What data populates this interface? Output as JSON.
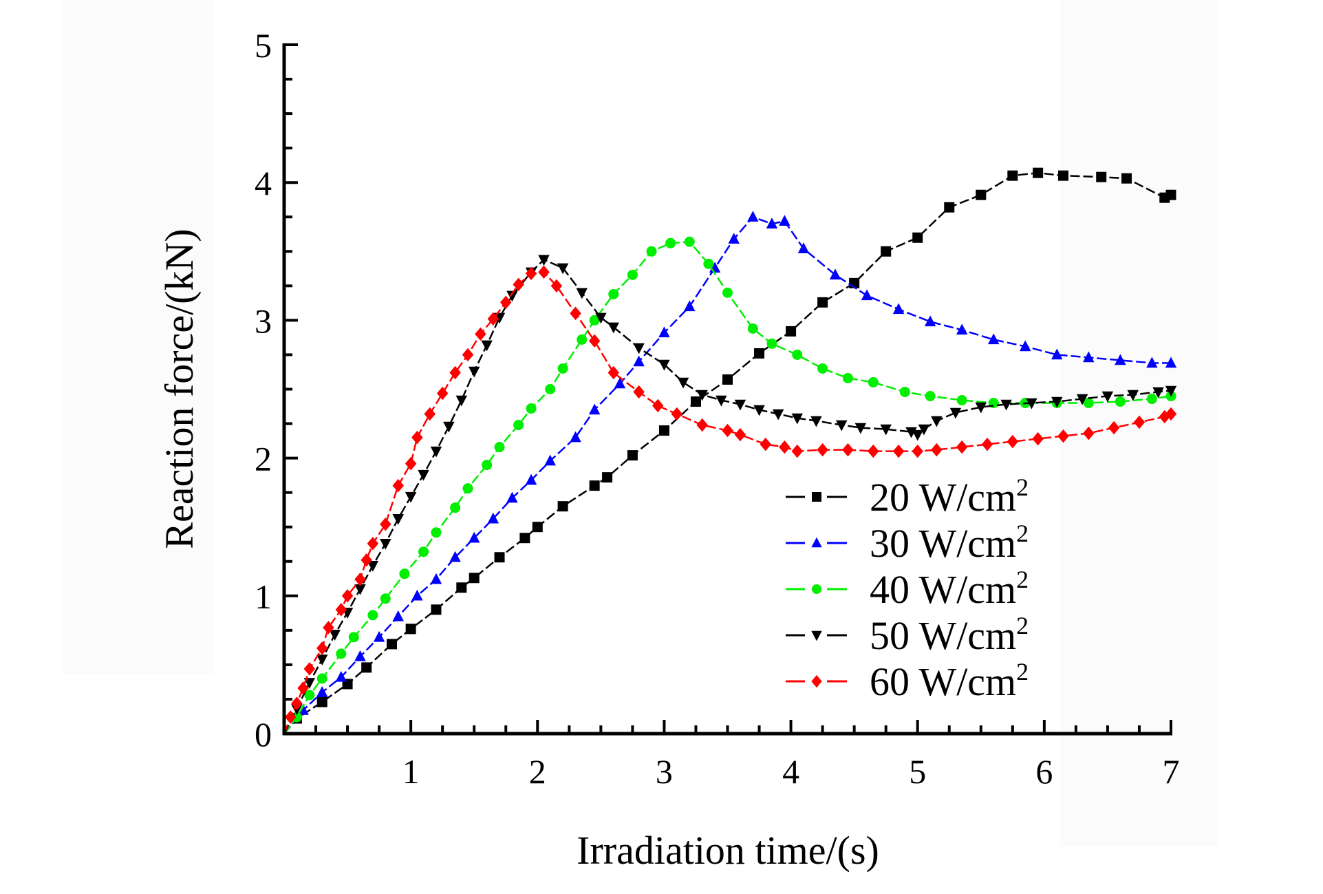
{
  "chart_data": {
    "type": "line",
    "title": "",
    "xlabel": "Irradiation time/(s)",
    "ylabel": "Reaction force/(kN)",
    "xlim": [
      0,
      7
    ],
    "ylim": [
      0,
      5
    ],
    "xticks": [
      1,
      2,
      3,
      4,
      5,
      6,
      7
    ],
    "yticks": [
      0,
      1,
      2,
      3,
      4,
      5
    ],
    "x_minor_step": 0.25,
    "y_minor_step": 0.25,
    "grid": false,
    "legend_position": "bottom-right",
    "series": [
      {
        "name": "20 W/cm²",
        "label_main": "20 W/cm",
        "label_sup": "2",
        "color": "#000000",
        "marker": "square",
        "x": [
          0,
          0.1,
          0.3,
          0.5,
          0.65,
          0.85,
          1.0,
          1.2,
          1.4,
          1.5,
          1.7,
          1.9,
          2.0,
          2.2,
          2.45,
          2.55,
          2.75,
          3.0,
          3.25,
          3.5,
          3.75,
          4.0,
          4.25,
          4.5,
          4.75,
          5.0,
          5.25,
          5.5,
          5.75,
          5.95,
          6.15,
          6.45,
          6.65,
          6.95,
          7.0
        ],
        "y": [
          0,
          0.11,
          0.23,
          0.36,
          0.48,
          0.65,
          0.76,
          0.9,
          1.06,
          1.13,
          1.28,
          1.42,
          1.5,
          1.65,
          1.8,
          1.86,
          2.02,
          2.2,
          2.41,
          2.57,
          2.76,
          2.92,
          3.13,
          3.27,
          3.5,
          3.6,
          3.82,
          3.91,
          4.05,
          4.07,
          4.05,
          4.04,
          4.03,
          3.89,
          3.91
        ]
      },
      {
        "name": "30 W/cm²",
        "label_main": "30 W/cm",
        "label_sup": "2",
        "color": "#0000ff",
        "marker": "triangle-up",
        "x": [
          0,
          0.15,
          0.3,
          0.45,
          0.6,
          0.75,
          0.9,
          1.05,
          1.2,
          1.35,
          1.5,
          1.65,
          1.8,
          1.95,
          2.1,
          2.3,
          2.45,
          2.65,
          2.8,
          3.0,
          3.2,
          3.4,
          3.55,
          3.7,
          3.85,
          3.95,
          4.1,
          4.35,
          4.6,
          4.85,
          5.1,
          5.35,
          5.6,
          5.85,
          6.1,
          6.35,
          6.6,
          6.85,
          7.0
        ],
        "y": [
          0,
          0.17,
          0.3,
          0.41,
          0.56,
          0.7,
          0.85,
          1.0,
          1.12,
          1.28,
          1.42,
          1.56,
          1.71,
          1.84,
          1.98,
          2.15,
          2.35,
          2.54,
          2.7,
          2.91,
          3.1,
          3.38,
          3.59,
          3.75,
          3.7,
          3.72,
          3.52,
          3.33,
          3.18,
          3.08,
          2.99,
          2.93,
          2.86,
          2.81,
          2.75,
          2.73,
          2.71,
          2.69,
          2.69
        ]
      },
      {
        "name": "40 W/cm²",
        "label_main": "40 W/cm",
        "label_sup": "2",
        "color": "#00ee00",
        "marker": "circle",
        "x": [
          0,
          0.1,
          0.2,
          0.3,
          0.45,
          0.55,
          0.7,
          0.8,
          0.95,
          1.1,
          1.2,
          1.35,
          1.45,
          1.6,
          1.7,
          1.85,
          1.95,
          2.1,
          2.2,
          2.35,
          2.45,
          2.6,
          2.75,
          2.9,
          3.05,
          3.2,
          3.35,
          3.5,
          3.7,
          3.85,
          4.05,
          4.25,
          4.45,
          4.65,
          4.9,
          5.1,
          5.35,
          5.6,
          5.85,
          6.1,
          6.35,
          6.6,
          6.85,
          7.0
        ],
        "y": [
          0,
          0.12,
          0.28,
          0.4,
          0.58,
          0.7,
          0.86,
          0.98,
          1.16,
          1.32,
          1.46,
          1.64,
          1.78,
          1.95,
          2.08,
          2.24,
          2.36,
          2.5,
          2.65,
          2.86,
          3.0,
          3.19,
          3.33,
          3.5,
          3.56,
          3.57,
          3.41,
          3.2,
          2.94,
          2.83,
          2.75,
          2.65,
          2.58,
          2.55,
          2.48,
          2.45,
          2.42,
          2.4,
          2.4,
          2.4,
          2.4,
          2.41,
          2.43,
          2.45
        ]
      },
      {
        "name": "50 W/cm²",
        "label_main": "50 W/cm",
        "label_sup": "2",
        "color": "#000000",
        "marker": "triangle-down",
        "x": [
          0,
          0.1,
          0.2,
          0.3,
          0.4,
          0.5,
          0.6,
          0.7,
          0.8,
          0.9,
          1.0,
          1.1,
          1.2,
          1.3,
          1.4,
          1.5,
          1.6,
          1.7,
          1.8,
          1.95,
          2.05,
          2.2,
          2.35,
          2.5,
          2.6,
          2.8,
          3.0,
          3.15,
          3.3,
          3.45,
          3.6,
          3.75,
          3.9,
          4.05,
          4.2,
          4.4,
          4.55,
          4.75,
          4.95,
          5.0,
          5.05,
          5.15,
          5.3,
          5.5,
          5.7,
          5.9,
          6.1,
          6.3,
          6.5,
          6.7,
          6.9,
          7.0
        ],
        "y": [
          0,
          0.18,
          0.37,
          0.54,
          0.72,
          0.88,
          1.05,
          1.22,
          1.38,
          1.56,
          1.72,
          1.88,
          2.05,
          2.23,
          2.42,
          2.63,
          2.82,
          3.02,
          3.18,
          3.35,
          3.44,
          3.38,
          3.2,
          3.02,
          2.95,
          2.8,
          2.68,
          2.55,
          2.46,
          2.42,
          2.39,
          2.35,
          2.32,
          2.29,
          2.27,
          2.24,
          2.22,
          2.21,
          2.19,
          2.17,
          2.21,
          2.27,
          2.33,
          2.37,
          2.39,
          2.4,
          2.41,
          2.43,
          2.45,
          2.46,
          2.48,
          2.49
        ]
      },
      {
        "name": "60 W/cm²",
        "label_main": "60 W/cm",
        "label_sup": "2",
        "color": "#ff0000",
        "marker": "diamond",
        "x": [
          0,
          0.05,
          0.1,
          0.15,
          0.2,
          0.3,
          0.35,
          0.45,
          0.5,
          0.6,
          0.65,
          0.7,
          0.8,
          0.9,
          1.0,
          1.05,
          1.15,
          1.25,
          1.35,
          1.45,
          1.55,
          1.65,
          1.75,
          1.85,
          1.95,
          2.05,
          2.15,
          2.3,
          2.45,
          2.6,
          2.8,
          2.95,
          3.1,
          3.3,
          3.5,
          3.6,
          3.8,
          3.95,
          4.05,
          4.25,
          4.45,
          4.65,
          4.85,
          5.0,
          5.15,
          5.35,
          5.55,
          5.75,
          5.95,
          6.15,
          6.35,
          6.55,
          6.75,
          6.95,
          7.0
        ],
        "y": [
          0,
          0.12,
          0.22,
          0.33,
          0.47,
          0.62,
          0.77,
          0.9,
          1.0,
          1.12,
          1.26,
          1.38,
          1.52,
          1.8,
          1.96,
          2.15,
          2.32,
          2.47,
          2.62,
          2.75,
          2.9,
          3.01,
          3.13,
          3.26,
          3.34,
          3.35,
          3.25,
          3.05,
          2.85,
          2.62,
          2.48,
          2.38,
          2.32,
          2.24,
          2.2,
          2.17,
          2.1,
          2.08,
          2.05,
          2.06,
          2.06,
          2.05,
          2.05,
          2.05,
          2.06,
          2.08,
          2.1,
          2.12,
          2.14,
          2.16,
          2.18,
          2.22,
          2.26,
          2.3,
          2.32
        ]
      }
    ]
  }
}
